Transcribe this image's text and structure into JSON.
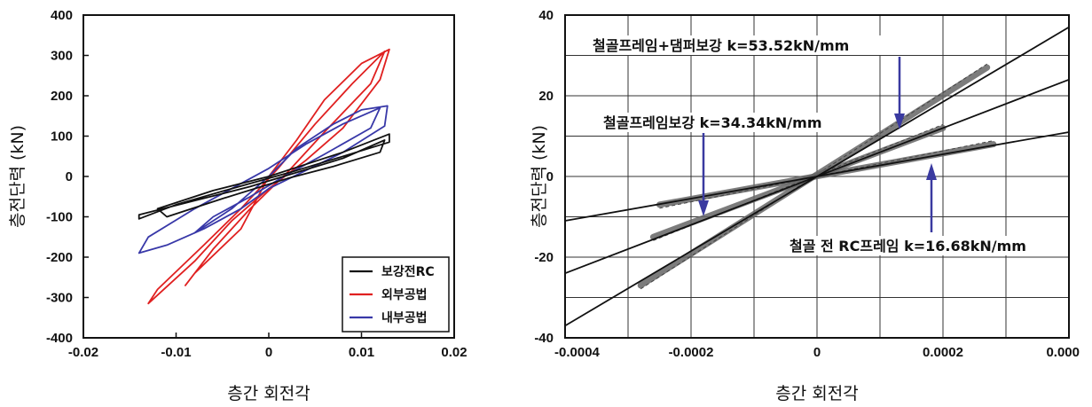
{
  "chart_data": [
    {
      "type": "line",
      "xlabel": "층간 회전각",
      "ylabel": "층전단력 (kN)",
      "xlim": [
        -0.02,
        0.02
      ],
      "ylim": [
        -400,
        400
      ],
      "x_ticks": [
        "-0.02",
        "-0.01",
        "0",
        "0.01",
        "0.02"
      ],
      "y_ticks": [
        "400",
        "300",
        "200",
        "100",
        "0",
        "-100",
        "-200",
        "-300",
        "-400"
      ],
      "grid": false,
      "legend_position": "bottom-right",
      "series": [
        {
          "name": "보강전RC",
          "color": "#111111",
          "x": [
            0,
            0.004,
            0.008,
            0.013,
            0.013,
            0.008,
            0.003,
            -0.004,
            -0.01,
            -0.014,
            -0.014,
            -0.008,
            -0.002,
            0.003,
            0.008,
            0.0125,
            0.012,
            0.007,
            0.002,
            -0.005,
            -0.011,
            -0.012,
            -0.006,
            0
          ],
          "y": [
            0,
            30,
            60,
            105,
            85,
            50,
            15,
            -30,
            -70,
            -105,
            -95,
            -60,
            -25,
            10,
            45,
            90,
            60,
            25,
            -5,
            -55,
            -100,
            -80,
            -35,
            0
          ]
        },
        {
          "name": "외부공법",
          "color": "#e02020",
          "x": [
            0,
            0.003,
            0.006,
            0.01,
            0.013,
            0.012,
            0.008,
            0.004,
            0,
            -0.004,
            -0.008,
            -0.013,
            -0.012,
            -0.007,
            -0.003,
            0.001,
            0.005,
            0.009,
            0.0125,
            0.011,
            0.006,
            0.002,
            -0.002,
            -0.006,
            -0.009,
            -0.008,
            -0.003,
            0
          ],
          "y": [
            0,
            90,
            190,
            280,
            315,
            240,
            120,
            40,
            -30,
            -110,
            -210,
            -315,
            -280,
            -170,
            -80,
            20,
            130,
            230,
            310,
            230,
            110,
            10,
            -80,
            -180,
            -270,
            -240,
            -130,
            0
          ]
        },
        {
          "name": "내부공법",
          "color": "#3838a8",
          "x": [
            0,
            0.003,
            0.007,
            0.01,
            0.0128,
            0.0125,
            0.008,
            0.004,
            0,
            -0.003,
            -0.007,
            -0.011,
            -0.014,
            -0.013,
            -0.008,
            -0.004,
            0,
            0.004,
            0.008,
            0.012,
            0.011,
            0.006,
            0.002,
            -0.002,
            -0.006,
            -0.008,
            -0.004,
            0
          ],
          "y": [
            0,
            70,
            130,
            165,
            175,
            125,
            60,
            15,
            -30,
            -80,
            -130,
            -170,
            -190,
            -150,
            -80,
            -30,
            20,
            80,
            130,
            170,
            120,
            55,
            5,
            -50,
            -100,
            -140,
            -80,
            0
          ]
        }
      ]
    },
    {
      "type": "line",
      "xlabel": "층간 회전각",
      "ylabel": "층전단력 (kN)",
      "xlim": [
        -0.0004,
        0.0004
      ],
      "ylim": [
        -40,
        40
      ],
      "x_ticks": [
        "-0.0004",
        "-0.0002",
        "0",
        "0.0002",
        "0.000"
      ],
      "y_ticks": [
        "40",
        "20",
        "0",
        "-20",
        "-40"
      ],
      "grid": true,
      "annotations": [
        "철골프레임+댐퍼보강 k=53.52kN/mm",
        "철골프레임보강 k=34.34kN/mm",
        "철골 전 RC프레임 k=16.68kN/mm"
      ],
      "series": [
        {
          "x": [
            -0.0004,
            0.0004
          ],
          "y": [
            -37,
            37
          ],
          "color": "#111111",
          "stiffness_kN_per_mm": 53.52
        },
        {
          "x": [
            -0.0004,
            0.0004
          ],
          "y": [
            -24,
            24
          ],
          "color": "#111111",
          "stiffness_kN_per_mm": 34.34
        },
        {
          "x": [
            -0.0004,
            0.0004
          ],
          "y": [
            -11,
            11
          ],
          "color": "#111111",
          "stiffness_kN_per_mm": 16.68
        }
      ],
      "measured_bands": [
        {
          "x": [
            -0.00028,
            0.00027
          ],
          "y": [
            -27,
            27
          ],
          "color": "#666666"
        },
        {
          "x": [
            -0.00026,
            0.0002
          ],
          "y": [
            -15,
            12
          ],
          "color": "#666666"
        },
        {
          "x": [
            -0.00025,
            0.00028
          ],
          "y": [
            -7,
            8
          ],
          "color": "#666666"
        }
      ]
    }
  ]
}
